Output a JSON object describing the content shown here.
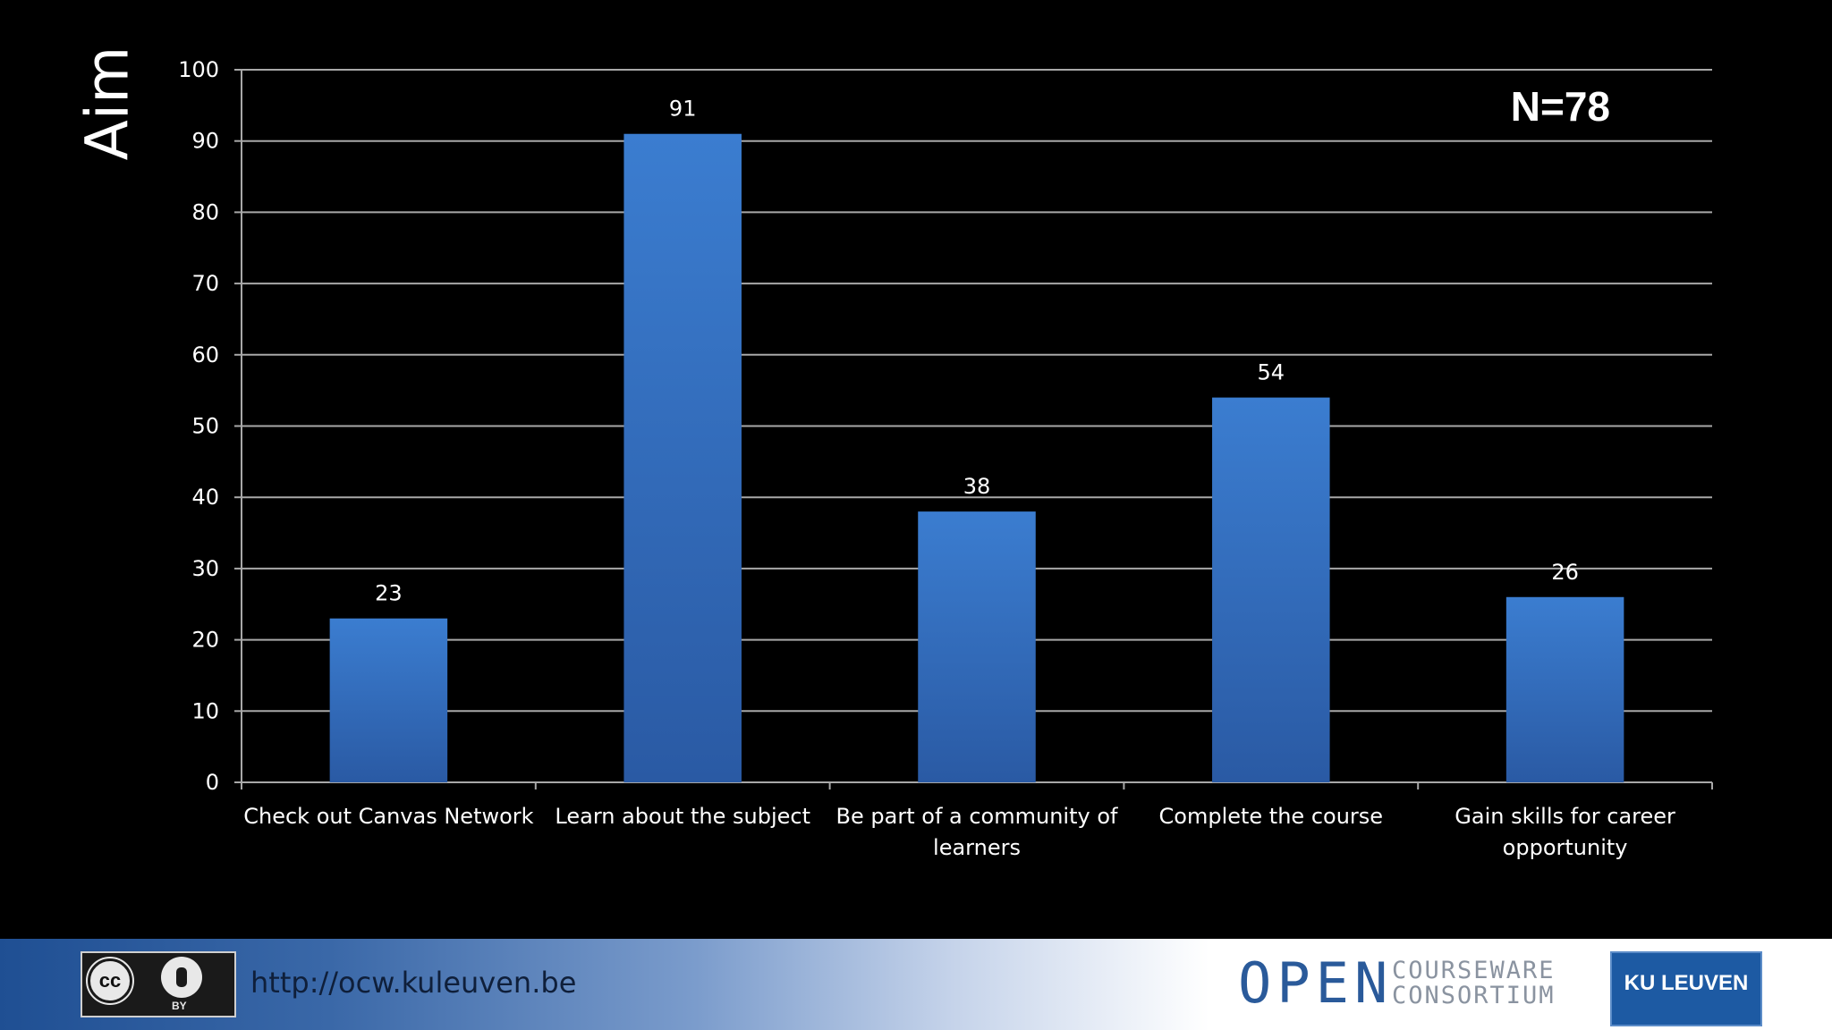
{
  "slide": {
    "title": "Aim",
    "n_label": "N=78"
  },
  "chart_data": {
    "type": "bar",
    "categories": [
      "Check out Canvas Network",
      "Learn about the subject",
      "Be part of a community of learners",
      "Complete the course",
      "Gain skills for career opportunity"
    ],
    "values": [
      23,
      91,
      38,
      54,
      26
    ],
    "ylim": [
      0,
      100
    ],
    "yticks": [
      0,
      10,
      20,
      30,
      40,
      50,
      60,
      70,
      80,
      90,
      100
    ],
    "grid": true,
    "data_labels": true,
    "bar_color": "#3a78c8"
  },
  "footer": {
    "url": "http://ocw.kuleuven.be",
    "cc_label": "cc",
    "by_label": "BY",
    "ocw_open": "OPEN",
    "ocw_courseware": "COURSEWARE",
    "ocw_consortium": "CONSORTIUM",
    "kul_label": "KU LEUVEN"
  }
}
